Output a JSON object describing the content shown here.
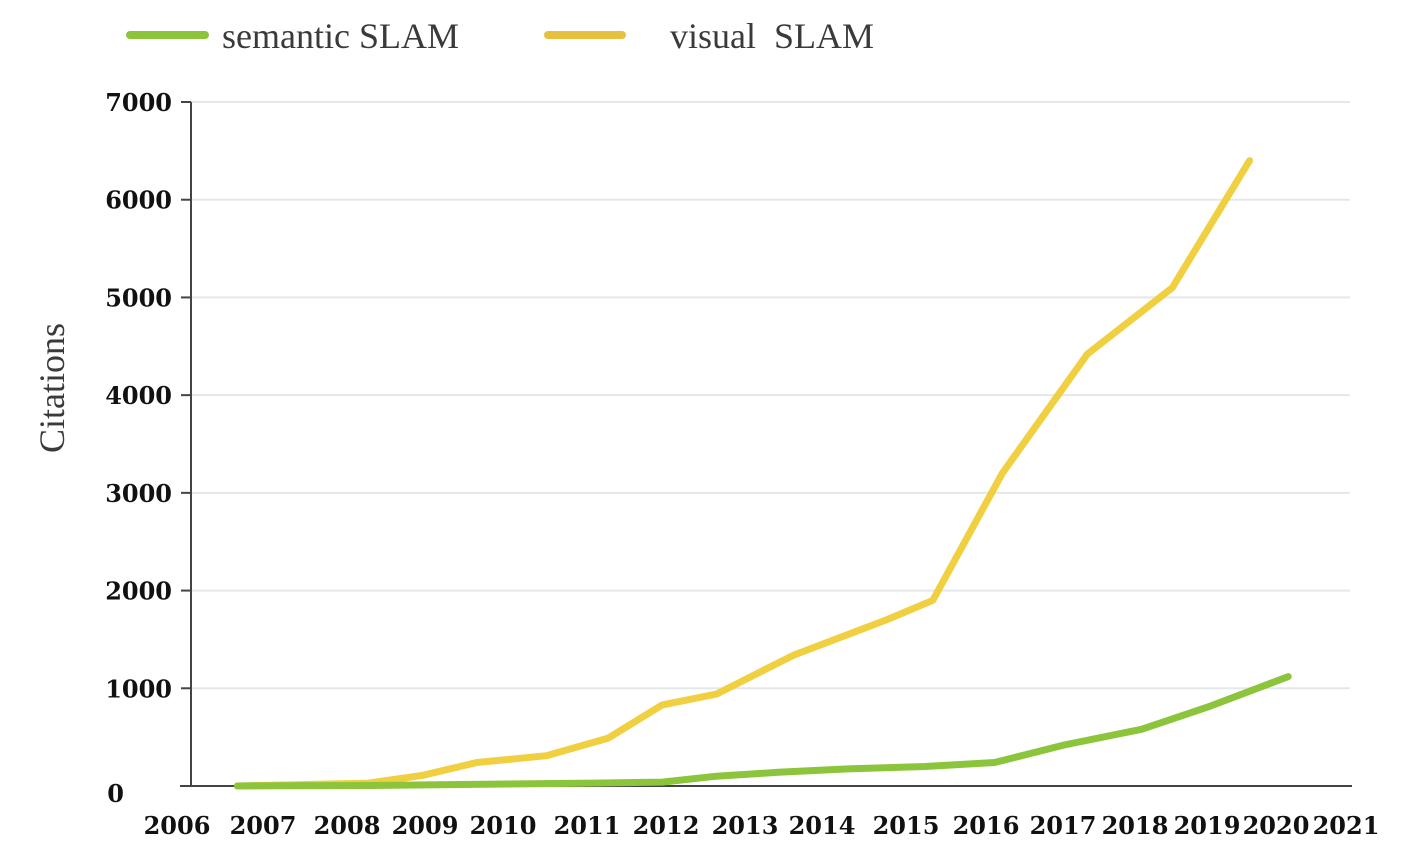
{
  "chart_data": {
    "type": "line",
    "title": "",
    "xlabel": "",
    "ylabel": "Citations",
    "ylim": [
      0,
      7000
    ],
    "yticks": [
      "0",
      "1000",
      "2000",
      "3000",
      "4000",
      "5000",
      "6000",
      "7000"
    ],
    "xticks": [
      "2006",
      "2007",
      "2008",
      "2009",
      "2010",
      "2011",
      "2012",
      "2013",
      "2014",
      "2015",
      "2016",
      "2017",
      "2018",
      "2019",
      "2020",
      "2021"
    ],
    "grid": true,
    "legend_position": "top",
    "series": [
      {
        "name": "semantic SLAM",
        "color": "#8cc43c",
        "points": [
          {
            "year": 2006.6,
            "value": 0
          },
          {
            "year": 2008.3,
            "value": 5
          },
          {
            "year": 2010.1,
            "value": 20
          },
          {
            "year": 2011.2,
            "value": 30
          },
          {
            "year": 2012.1,
            "value": 40
          },
          {
            "year": 2012.8,
            "value": 100
          },
          {
            "year": 2013.6,
            "value": 140
          },
          {
            "year": 2014.5,
            "value": 175
          },
          {
            "year": 2015.5,
            "value": 200
          },
          {
            "year": 2016.4,
            "value": 240
          },
          {
            "year": 2017.3,
            "value": 420
          },
          {
            "year": 2018.3,
            "value": 580
          },
          {
            "year": 2019.2,
            "value": 820
          },
          {
            "year": 2020.2,
            "value": 1120
          }
        ]
      },
      {
        "name": "visual  SLAM",
        "color": "#f0d040",
        "points": [
          {
            "year": 2006.6,
            "value": 0
          },
          {
            "year": 2008.3,
            "value": 30
          },
          {
            "year": 2009.0,
            "value": 110
          },
          {
            "year": 2009.7,
            "value": 240
          },
          {
            "year": 2010.6,
            "value": 310
          },
          {
            "year": 2011.4,
            "value": 490
          },
          {
            "year": 2012.1,
            "value": 830
          },
          {
            "year": 2012.8,
            "value": 940
          },
          {
            "year": 2013.8,
            "value": 1340
          },
          {
            "year": 2015.0,
            "value": 1700
          },
          {
            "year": 2015.6,
            "value": 1900
          },
          {
            "year": 2016.5,
            "value": 3200
          },
          {
            "year": 2017.6,
            "value": 4420
          },
          {
            "year": 2018.7,
            "value": 5100
          },
          {
            "year": 2019.7,
            "value": 6400
          }
        ]
      }
    ]
  }
}
